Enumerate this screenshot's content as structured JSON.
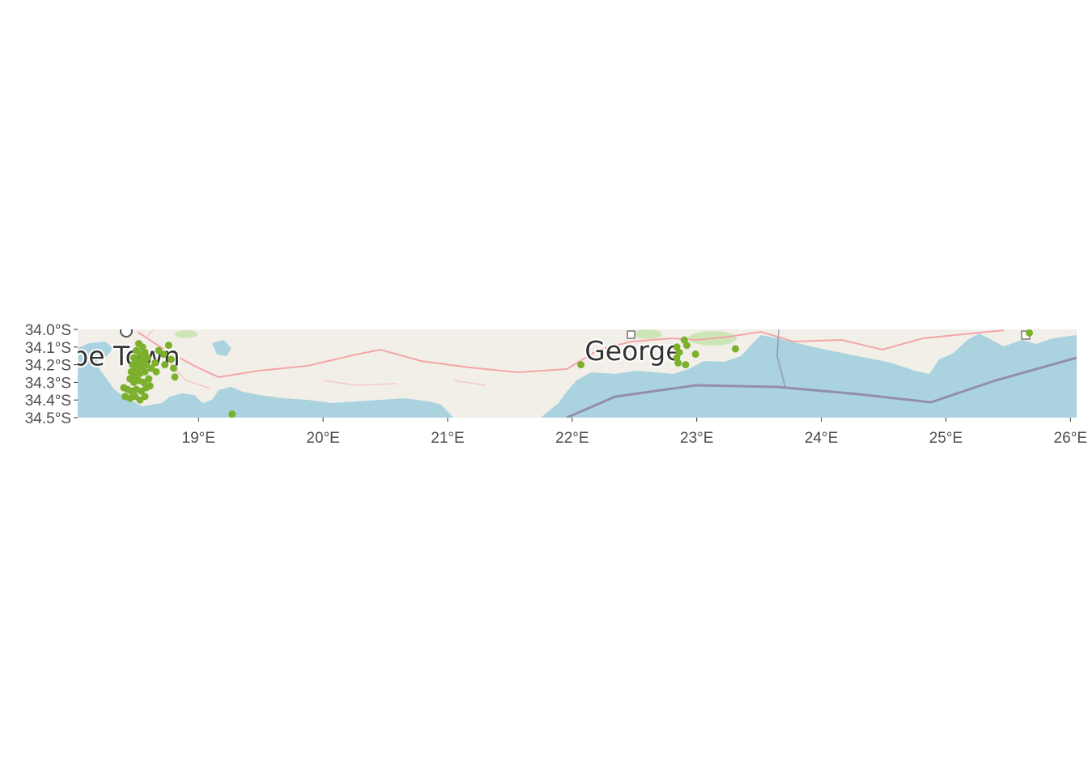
{
  "map": {
    "basemap_colors": {
      "land": "#f2efe9",
      "water": "#aad3df",
      "road": "#f4a6a6",
      "boundary": "#8d7e99",
      "park": "#cde6b8",
      "points": "#7cb02c"
    },
    "axis": {
      "lon_range": [
        18.03,
        26.05
      ],
      "lat_range": [
        -34.5,
        -34.0
      ],
      "x_ticks": [
        {
          "value": 19,
          "label": "19°E"
        },
        {
          "value": 20,
          "label": "20°E"
        },
        {
          "value": 21,
          "label": "21°E"
        },
        {
          "value": 22,
          "label": "22°E"
        },
        {
          "value": 23,
          "label": "23°E"
        },
        {
          "value": 24,
          "label": "24°E"
        },
        {
          "value": 25,
          "label": "25°E"
        },
        {
          "value": 26,
          "label": "26°E"
        }
      ],
      "y_ticks": [
        {
          "value": -34.0,
          "label": "34.0°S"
        },
        {
          "value": -34.1,
          "label": "34.1°S"
        },
        {
          "value": -34.2,
          "label": "34.2°S"
        },
        {
          "value": -34.3,
          "label": "34.3°S"
        },
        {
          "value": -34.4,
          "label": "34.4°S"
        },
        {
          "value": -34.5,
          "label": "34.5°S"
        }
      ]
    },
    "place_labels": [
      {
        "name": "pe Town",
        "lon": 17.98,
        "lat": -34.15
      },
      {
        "name": "George",
        "lon": 22.1,
        "lat": -34.12
      }
    ],
    "points": [
      {
        "lon": 18.52,
        "lat": -34.08
      },
      {
        "lon": 18.55,
        "lat": -34.1
      },
      {
        "lon": 18.5,
        "lat": -34.12
      },
      {
        "lon": 18.53,
        "lat": -34.14
      },
      {
        "lon": 18.57,
        "lat": -34.13
      },
      {
        "lon": 18.48,
        "lat": -34.16
      },
      {
        "lon": 18.51,
        "lat": -34.18
      },
      {
        "lon": 18.55,
        "lat": -34.17
      },
      {
        "lon": 18.59,
        "lat": -34.16
      },
      {
        "lon": 18.47,
        "lat": -34.2
      },
      {
        "lon": 18.5,
        "lat": -34.22
      },
      {
        "lon": 18.54,
        "lat": -34.21
      },
      {
        "lon": 18.58,
        "lat": -34.2
      },
      {
        "lon": 18.46,
        "lat": -34.24
      },
      {
        "lon": 18.49,
        "lat": -34.26
      },
      {
        "lon": 18.53,
        "lat": -34.25
      },
      {
        "lon": 18.57,
        "lat": -34.24
      },
      {
        "lon": 18.45,
        "lat": -34.28
      },
      {
        "lon": 18.48,
        "lat": -34.3
      },
      {
        "lon": 18.52,
        "lat": -34.29
      },
      {
        "lon": 18.56,
        "lat": -34.3
      },
      {
        "lon": 18.6,
        "lat": -34.28
      },
      {
        "lon": 18.4,
        "lat": -34.33
      },
      {
        "lon": 18.43,
        "lat": -34.34
      },
      {
        "lon": 18.46,
        "lat": -34.35
      },
      {
        "lon": 18.5,
        "lat": -34.34
      },
      {
        "lon": 18.54,
        "lat": -34.35
      },
      {
        "lon": 18.58,
        "lat": -34.33
      },
      {
        "lon": 18.41,
        "lat": -34.38
      },
      {
        "lon": 18.45,
        "lat": -34.39
      },
      {
        "lon": 18.49,
        "lat": -34.38
      },
      {
        "lon": 18.53,
        "lat": -34.4
      },
      {
        "lon": 18.57,
        "lat": -34.38
      },
      {
        "lon": 18.61,
        "lat": -34.32
      },
      {
        "lon": 18.62,
        "lat": -34.22
      },
      {
        "lon": 18.65,
        "lat": -34.19
      },
      {
        "lon": 18.68,
        "lat": -34.12
      },
      {
        "lon": 18.72,
        "lat": -34.14
      },
      {
        "lon": 18.76,
        "lat": -34.09
      },
      {
        "lon": 18.78,
        "lat": -34.17
      },
      {
        "lon": 18.73,
        "lat": -34.2
      },
      {
        "lon": 18.8,
        "lat": -34.22
      },
      {
        "lon": 18.81,
        "lat": -34.27
      },
      {
        "lon": 18.66,
        "lat": -34.24
      },
      {
        "lon": 19.27,
        "lat": -34.48
      },
      {
        "lon": 22.07,
        "lat": -34.2
      },
      {
        "lon": 22.84,
        "lat": -34.1
      },
      {
        "lon": 22.86,
        "lat": -34.13
      },
      {
        "lon": 22.84,
        "lat": -34.16
      },
      {
        "lon": 22.85,
        "lat": -34.19
      },
      {
        "lon": 22.9,
        "lat": -34.06
      },
      {
        "lon": 22.92,
        "lat": -34.09
      },
      {
        "lon": 22.91,
        "lat": -34.2
      },
      {
        "lon": 22.99,
        "lat": -34.14
      },
      {
        "lon": 23.31,
        "lat": -34.11
      },
      {
        "lon": 25.67,
        "lat": -34.02
      }
    ]
  }
}
